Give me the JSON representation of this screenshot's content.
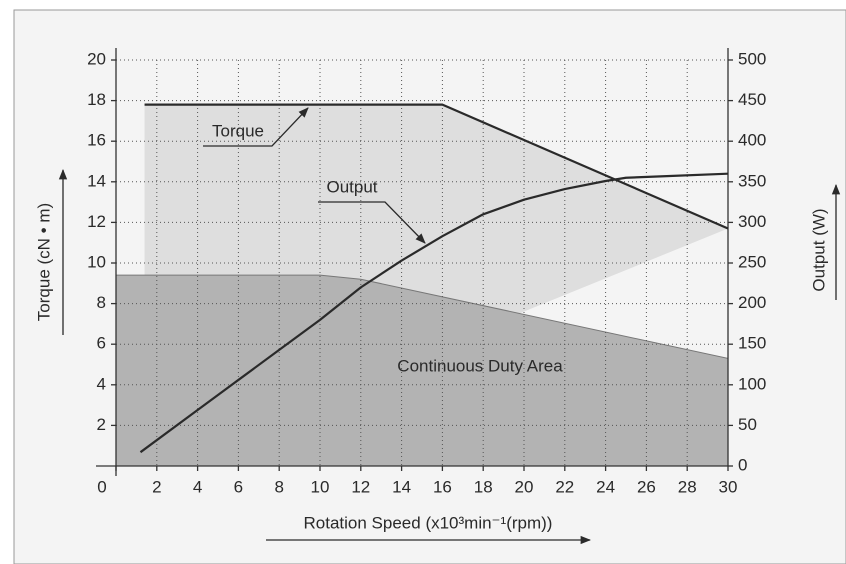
{
  "chart_data": {
    "type": "line",
    "xlabel": "Rotation Speed (x10³min⁻¹(rpm))",
    "ylabel": "Torque (cN • m)",
    "y2label": "Output (W)",
    "xlim": [
      0,
      30
    ],
    "xticks": [
      0,
      2,
      4,
      6,
      8,
      10,
      12,
      14,
      16,
      18,
      20,
      22,
      24,
      26,
      28,
      30
    ],
    "ylim": [
      0,
      20
    ],
    "yticks": [
      2,
      4,
      6,
      8,
      10,
      12,
      14,
      16,
      18,
      20
    ],
    "y2lim": [
      0,
      500
    ],
    "y2ticks": [
      0,
      50,
      100,
      150,
      200,
      250,
      300,
      350,
      400,
      450,
      500
    ],
    "grid": true,
    "series": [
      {
        "name": "Torque",
        "color": "#2a2a2a",
        "x": [
          1.4,
          16,
          30
        ],
        "values": [
          17.8,
          17.8,
          11.7
        ]
      },
      {
        "name": "Output",
        "color": "#2a2a2a",
        "axis": "y2",
        "x": [
          1.2,
          4,
          6,
          8,
          10,
          12,
          14,
          16,
          18,
          20,
          22,
          24,
          25,
          27,
          30
        ],
        "values": [
          17,
          69,
          106,
          143,
          180,
          220,
          253,
          283,
          310,
          328,
          341,
          351,
          355,
          357,
          360
        ]
      },
      {
        "name": "Continuous Duty Area",
        "color": "#b3b3b3",
        "area": true,
        "x": [
          0,
          10,
          12,
          30
        ],
        "values": [
          9.4,
          9.4,
          9.2,
          5.3
        ]
      }
    ]
  }
}
